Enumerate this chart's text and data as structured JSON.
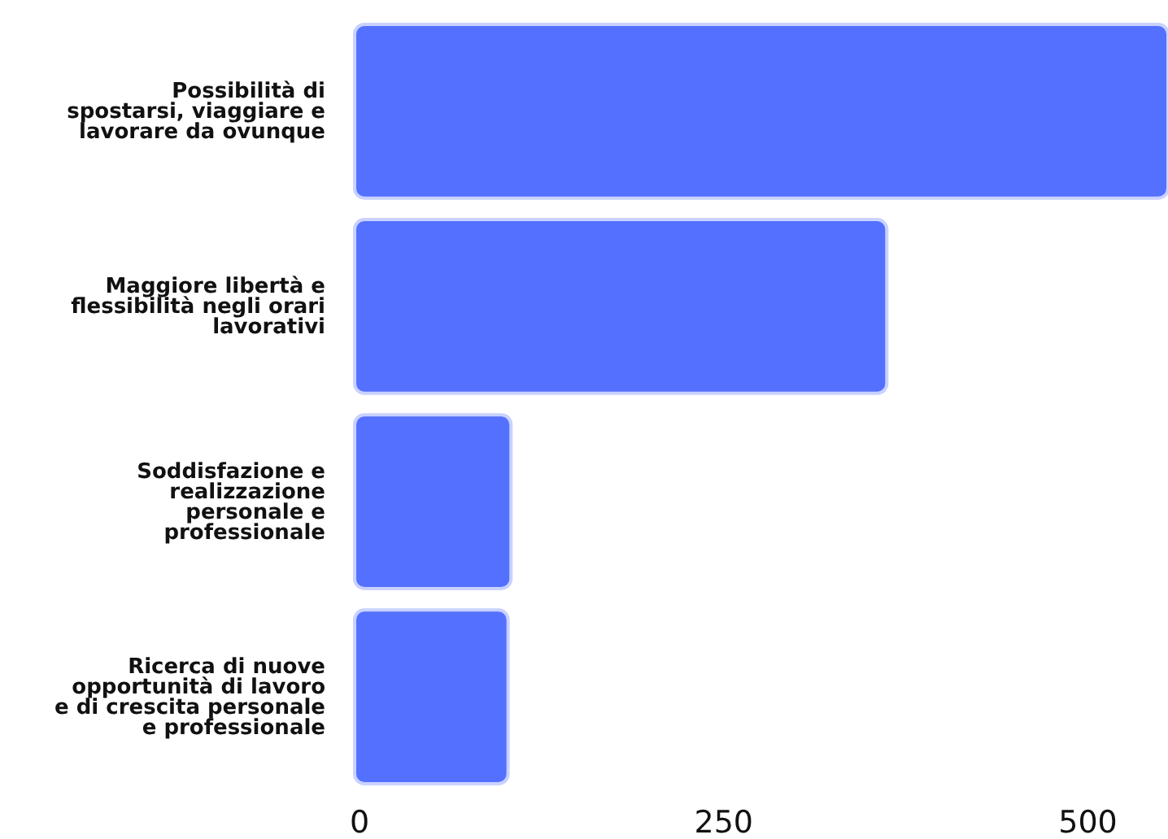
{
  "chart_data": {
    "type": "bar",
    "orientation": "horizontal",
    "categories": [
      "Possibilità di\nspostarsi, viaggiare e\nlavorare da ovunque",
      "Maggiore libertà e\nflessibilità negli orari\nlavorativi",
      "Soddisfazione e\nrealizzazione\npersonale e\nprofessionale",
      "Ricerca di nuove\nopportunità di lavoro\ne di crescita personale\ne professionale"
    ],
    "values": [
      555,
      362,
      104,
      102
    ],
    "color": "#5470ff",
    "xlim": [
      0,
      555
    ],
    "xticks": [
      0,
      250,
      500
    ],
    "grid": false
  }
}
